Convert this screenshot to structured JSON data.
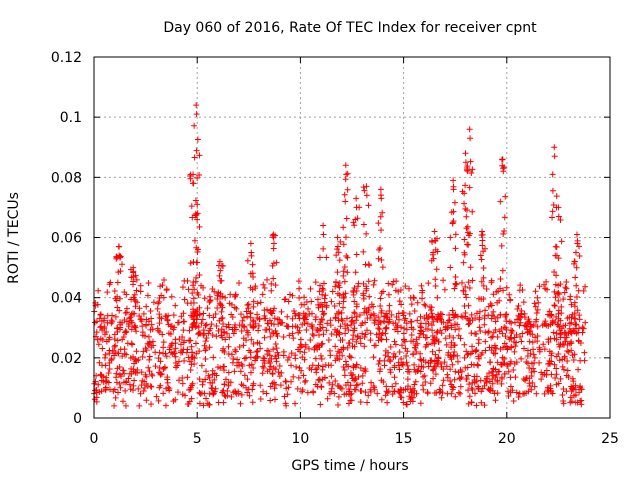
{
  "chart_data": {
    "type": "scatter",
    "title": "Day 060 of 2016, Rate Of TEC Index for receiver cpnt",
    "xlabel": "GPS time / hours",
    "ylabel": "ROTI / TECUs",
    "xlim": [
      0,
      25
    ],
    "ylim": [
      0,
      0.12
    ],
    "xticks": [
      0,
      5,
      10,
      15,
      20,
      25
    ],
    "xtick_labels": [
      "0",
      "5",
      "10",
      "15",
      "20",
      "25"
    ],
    "yticks": [
      0,
      0.02,
      0.04,
      0.06,
      0.08,
      0.1,
      0.12
    ],
    "ytick_labels": [
      "0",
      "0.02",
      "0.04",
      "0.06",
      "0.08",
      "0.1",
      "0.12"
    ],
    "grid": true,
    "marker": "plus",
    "series": [
      {
        "name": "ROTI",
        "color": "#ff0000",
        "x_range": [
          0,
          23.8
        ],
        "typical_band": [
          0.005,
          0.035
        ],
        "peaks": [
          {
            "x": 1.2,
            "y": 0.057
          },
          {
            "x": 1.9,
            "y": 0.05
          },
          {
            "x": 4.8,
            "y": 0.081
          },
          {
            "x": 4.95,
            "y": 0.104
          },
          {
            "x": 5.0,
            "y": 0.071
          },
          {
            "x": 6.1,
            "y": 0.052
          },
          {
            "x": 7.6,
            "y": 0.058
          },
          {
            "x": 8.7,
            "y": 0.061
          },
          {
            "x": 11.1,
            "y": 0.064
          },
          {
            "x": 11.8,
            "y": 0.06
          },
          {
            "x": 12.2,
            "y": 0.084
          },
          {
            "x": 12.7,
            "y": 0.073
          },
          {
            "x": 13.2,
            "y": 0.077
          },
          {
            "x": 13.9,
            "y": 0.076
          },
          {
            "x": 16.5,
            "y": 0.062
          },
          {
            "x": 17.4,
            "y": 0.079
          },
          {
            "x": 18.0,
            "y": 0.088
          },
          {
            "x": 18.2,
            "y": 0.096
          },
          {
            "x": 18.8,
            "y": 0.062
          },
          {
            "x": 19.8,
            "y": 0.086
          },
          {
            "x": 22.3,
            "y": 0.09
          },
          {
            "x": 22.5,
            "y": 0.07
          },
          {
            "x": 23.4,
            "y": 0.061
          }
        ]
      }
    ]
  }
}
